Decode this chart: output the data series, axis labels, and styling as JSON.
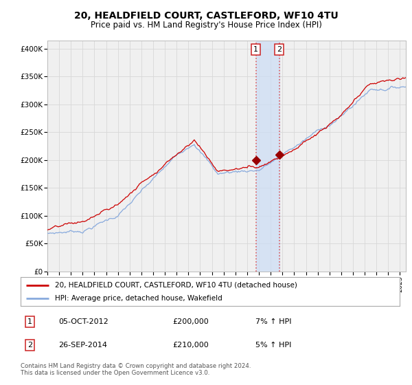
{
  "title": "20, HEALDFIELD COURT, CASTLEFORD, WF10 4TU",
  "subtitle": "Price paid vs. HM Land Registry's House Price Index (HPI)",
  "title_fontsize": 10,
  "subtitle_fontsize": 8.5,
  "ylabel_ticks": [
    "£0",
    "£50K",
    "£100K",
    "£150K",
    "£200K",
    "£250K",
    "£300K",
    "£350K",
    "£400K"
  ],
  "ytick_values": [
    0,
    50000,
    100000,
    150000,
    200000,
    250000,
    300000,
    350000,
    400000
  ],
  "ylim": [
    0,
    415000
  ],
  "xlim_start": 1995.0,
  "xlim_end": 2025.5,
  "red_line_color": "#cc0000",
  "blue_line_color": "#88aadd",
  "marker_color": "#990000",
  "vline1_x": 2012.75,
  "vline2_x": 2014.73,
  "sale1_price_val": 200000,
  "sale2_price_val": 210000,
  "sale1_date": "05-OCT-2012",
  "sale1_price": "£200,000",
  "sale1_hpi": "7% ↑ HPI",
  "sale2_date": "26-SEP-2014",
  "sale2_price": "£210,000",
  "sale2_hpi": "5% ↑ HPI",
  "legend1": "20, HEALDFIELD COURT, CASTLEFORD, WF10 4TU (detached house)",
  "legend2": "HPI: Average price, detached house, Wakefield",
  "footer": "Contains HM Land Registry data © Crown copyright and database right 2024.\nThis data is licensed under the Open Government Licence v3.0.",
  "bg_color": "#ffffff",
  "plot_bg_color": "#f0f0f0",
  "grid_color": "#d8d8d8",
  "span_color": "#ccddf5",
  "vline_color": "#dd4444"
}
